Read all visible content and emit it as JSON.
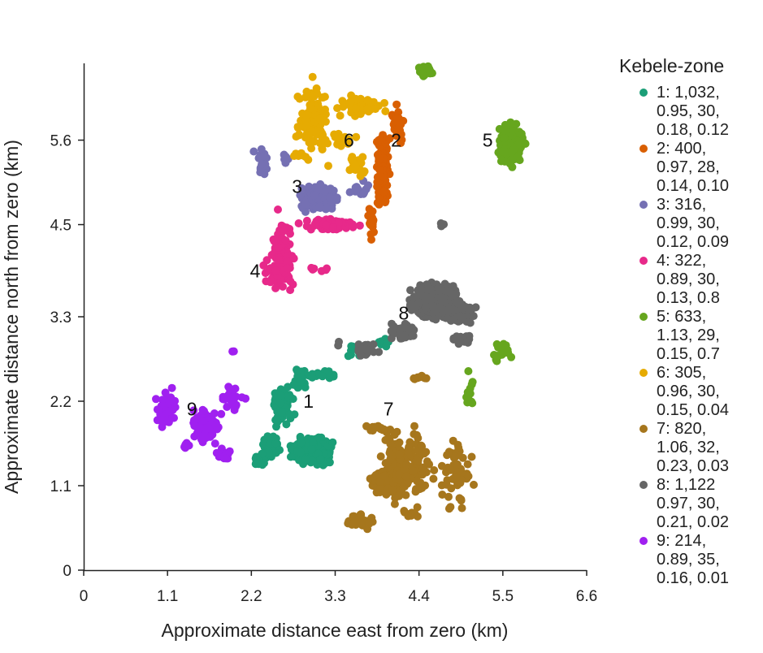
{
  "chart_data": {
    "type": "scatter",
    "xlabel": "Approximate distance east from zero (km)",
    "ylabel": "Approximate distance north from zero (km)",
    "xlim": [
      0,
      6.6
    ],
    "ylim": [
      0,
      6.6
    ],
    "xticks": [
      "0",
      "1.1",
      "2.2",
      "3.3",
      "4.4",
      "5.5",
      "6.6"
    ],
    "yticks": [
      "0",
      "1.1",
      "2.2",
      "3.3",
      "4.5",
      "5.6"
    ],
    "legend_title": "Kebele-zone",
    "legend_position": "right",
    "series": [
      {
        "name": "1: 1,032,\n0.95, 30,\n0.18, 0.12",
        "label": "1",
        "color": "#1b9e77",
        "label_pos": [
          2.95,
          2.2
        ],
        "clusters": [
          {
            "c": [
              3.0,
              1.55
            ],
            "s": [
              0.18,
              0.12
            ],
            "n": 320
          },
          {
            "c": [
              2.45,
              1.6
            ],
            "s": [
              0.08,
              0.12
            ],
            "n": 70
          },
          {
            "c": [
              2.6,
              2.15
            ],
            "s": [
              0.12,
              0.2
            ],
            "n": 60
          },
          {
            "c": [
              2.85,
              2.5
            ],
            "s": [
              0.08,
              0.12
            ],
            "n": 30
          },
          {
            "c": [
              3.15,
              2.55
            ],
            "s": [
              0.1,
              0.05
            ],
            "n": 18
          },
          {
            "c": [
              3.55,
              2.85
            ],
            "s": [
              0.08,
              0.08
            ],
            "n": 10
          },
          {
            "c": [
              3.95,
              2.97
            ],
            "s": [
              0.08,
              0.05
            ],
            "n": 8
          },
          {
            "c": [
              2.3,
              1.4
            ],
            "s": [
              0.05,
              0.07
            ],
            "n": 15
          }
        ]
      },
      {
        "name": "2: 400,\n0.97, 28,\n0.14, 0.10",
        "label": "2",
        "color": "#d95f02",
        "label_pos": [
          4.1,
          5.6
        ],
        "clusters": [
          {
            "c": [
              3.92,
              5.2
            ],
            "s": [
              0.06,
              0.4
            ],
            "n": 160
          },
          {
            "c": [
              4.1,
              5.8
            ],
            "s": [
              0.08,
              0.15
            ],
            "n": 40
          },
          {
            "c": [
              3.78,
              4.5
            ],
            "s": [
              0.04,
              0.15
            ],
            "n": 15
          }
        ]
      },
      {
        "name": "3: 316,\n0.99, 30,\n0.12, 0.09",
        "label": "3",
        "color": "#7570b3",
        "label_pos": [
          2.8,
          5.0
        ],
        "clusters": [
          {
            "c": [
              3.1,
              4.85
            ],
            "s": [
              0.18,
              0.12
            ],
            "n": 150
          },
          {
            "c": [
              2.35,
              5.3
            ],
            "s": [
              0.08,
              0.15
            ],
            "n": 20
          },
          {
            "c": [
              2.65,
              5.35
            ],
            "s": [
              0.04,
              0.08
            ],
            "n": 6
          },
          {
            "c": [
              3.6,
              4.95
            ],
            "s": [
              0.12,
              0.08
            ],
            "n": 15
          }
        ]
      },
      {
        "name": "4: 322,\n0.89, 30,\n0.13, 0.8",
        "label": "4",
        "color": "#e7298a",
        "label_pos": [
          2.25,
          3.9
        ],
        "clusters": [
          {
            "c": [
              3.2,
              4.5
            ],
            "s": [
              0.25,
              0.06
            ],
            "n": 70
          },
          {
            "c": [
              2.6,
              4.1
            ],
            "s": [
              0.12,
              0.35
            ],
            "n": 110
          },
          {
            "c": [
              2.5,
              3.85
            ],
            "s": [
              0.12,
              0.1
            ],
            "n": 25
          },
          {
            "c": [
              3.1,
              3.93
            ],
            "s": [
              0.15,
              0.03
            ],
            "n": 6
          }
        ]
      },
      {
        "name": "5: 633,\n1.13, 29,\n0.15, 0.7",
        "label": "5",
        "color": "#66a61e",
        "label_pos": [
          5.3,
          5.6
        ],
        "clusters": [
          {
            "c": [
              5.6,
              5.55
            ],
            "s": [
              0.12,
              0.2
            ],
            "n": 250
          },
          {
            "c": [
              4.5,
              6.5
            ],
            "s": [
              0.08,
              0.05
            ],
            "n": 20
          },
          {
            "c": [
              5.5,
              2.85
            ],
            "s": [
              0.1,
              0.12
            ],
            "n": 20
          },
          {
            "c": [
              5.05,
              2.35
            ],
            "s": [
              0.05,
              0.18
            ],
            "n": 12
          }
        ]
      },
      {
        "name": "6: 305,\n0.96, 30,\n0.15, 0.04",
        "label": "6",
        "color": "#e6ab02",
        "label_pos": [
          3.48,
          5.6
        ],
        "clusters": [
          {
            "c": [
              3.0,
              5.9
            ],
            "s": [
              0.15,
              0.35
            ],
            "n": 110
          },
          {
            "c": [
              3.35,
              5.6
            ],
            "s": [
              0.15,
              0.06
            ],
            "n": 25
          },
          {
            "c": [
              3.6,
              5.25
            ],
            "s": [
              0.08,
              0.1
            ],
            "n": 25
          },
          {
            "c": [
              3.6,
              6.05
            ],
            "s": [
              0.2,
              0.1
            ],
            "n": 60
          },
          {
            "c": [
              2.85,
              5.4
            ],
            "s": [
              0.08,
              0.05
            ],
            "n": 8
          }
        ]
      },
      {
        "name": "7: 820,\n1.06, 32,\n0.23, 0.03",
        "label": "7",
        "color": "#a6761d",
        "label_pos": [
          4.0,
          2.1
        ],
        "clusters": [
          {
            "c": [
              4.0,
              1.15
            ],
            "s": [
              0.15,
              0.12
            ],
            "n": 260
          },
          {
            "c": [
              4.25,
              1.4
            ],
            "s": [
              0.25,
              0.35
            ],
            "n": 150
          },
          {
            "c": [
              4.9,
              1.3
            ],
            "s": [
              0.15,
              0.35
            ],
            "n": 50
          },
          {
            "c": [
              3.65,
              0.65
            ],
            "s": [
              0.15,
              0.08
            ],
            "n": 25
          },
          {
            "c": [
              4.3,
              0.75
            ],
            "s": [
              0.1,
              0.06
            ],
            "n": 10
          },
          {
            "c": [
              4.4,
              2.5
            ],
            "s": [
              0.08,
              0.03
            ],
            "n": 10
          },
          {
            "c": [
              3.85,
              1.85
            ],
            "s": [
              0.12,
              0.05
            ],
            "n": 15
          }
        ]
      },
      {
        "name": "8: 1,122\n0.97, 30,\n0.21, 0.02",
        "label": "8",
        "color": "#666666",
        "label_pos": [
          4.2,
          3.35
        ],
        "clusters": [
          {
            "c": [
              4.6,
              3.5
            ],
            "s": [
              0.2,
              0.15
            ],
            "n": 650
          },
          {
            "c": [
              4.95,
              3.35
            ],
            "s": [
              0.12,
              0.1
            ],
            "n": 120
          },
          {
            "c": [
              4.2,
              3.1
            ],
            "s": [
              0.12,
              0.08
            ],
            "n": 50
          },
          {
            "c": [
              3.7,
              2.88
            ],
            "s": [
              0.12,
              0.06
            ],
            "n": 25
          },
          {
            "c": [
              4.95,
              3.0
            ],
            "s": [
              0.1,
              0.04
            ],
            "n": 25
          },
          {
            "c": [
              4.7,
              4.5
            ],
            "s": [
              0.03,
              0.03
            ],
            "n": 3
          },
          {
            "c": [
              3.35,
              2.95
            ],
            "s": [
              0.03,
              0.03
            ],
            "n": 2
          }
        ]
      },
      {
        "name": "9: 214,\n0.89, 35,\n0.16, 0.01",
        "label": "9",
        "color": "#a020f0",
        "label_pos": [
          1.42,
          2.1
        ],
        "clusters": [
          {
            "c": [
              1.1,
              2.1
            ],
            "s": [
              0.1,
              0.18
            ],
            "n": 50
          },
          {
            "c": [
              1.6,
              1.9
            ],
            "s": [
              0.15,
              0.18
            ],
            "n": 70
          },
          {
            "c": [
              1.95,
              2.25
            ],
            "s": [
              0.12,
              0.12
            ],
            "n": 25
          },
          {
            "c": [
              1.85,
              1.5
            ],
            "s": [
              0.08,
              0.07
            ],
            "n": 15
          },
          {
            "c": [
              1.35,
              1.6
            ],
            "s": [
              0.05,
              0.05
            ],
            "n": 5
          },
          {
            "c": [
              1.95,
              2.85
            ],
            "s": [
              0.03,
              0.03
            ],
            "n": 2
          }
        ]
      }
    ]
  }
}
